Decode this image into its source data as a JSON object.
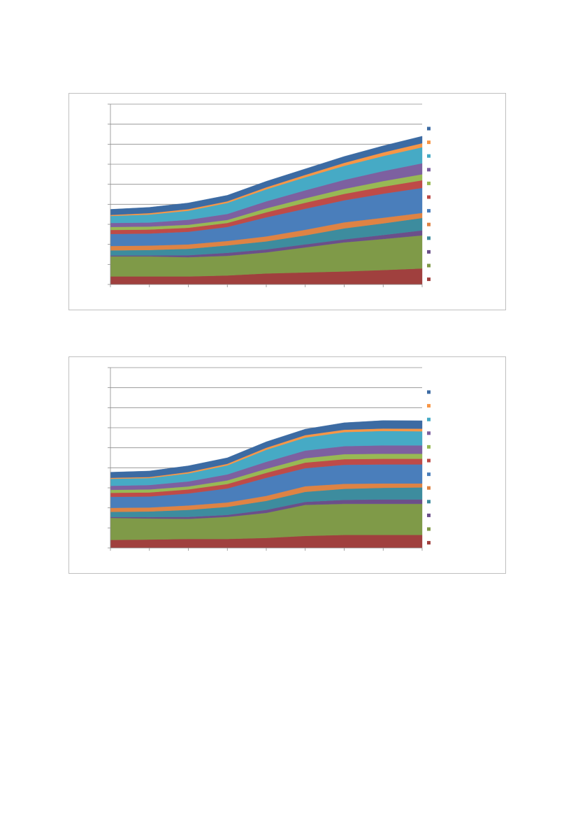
{
  "chart_data": [
    {
      "type": "area",
      "stacked": true,
      "x": [
        0,
        1,
        2,
        3,
        4,
        5,
        6,
        7,
        8
      ],
      "ylim": [
        0,
        9
      ],
      "grid": true,
      "legend_position": "right",
      "series": [
        {
          "color": "#A0403E",
          "values": [
            0.4,
            0.4,
            0.4,
            0.45,
            0.55,
            0.6,
            0.65,
            0.72,
            0.8
          ]
        },
        {
          "color": "#7F9A48",
          "values": [
            1.0,
            1.0,
            0.96,
            0.98,
            1.05,
            1.25,
            1.45,
            1.55,
            1.65
          ]
        },
        {
          "color": "#6B4F8A",
          "values": [
            0.05,
            0.05,
            0.1,
            0.15,
            0.15,
            0.15,
            0.15,
            0.2,
            0.25
          ]
        },
        {
          "color": "#3D8C9E",
          "values": [
            0.25,
            0.27,
            0.32,
            0.37,
            0.4,
            0.45,
            0.55,
            0.58,
            0.62
          ]
        },
        {
          "color": "#DE8344",
          "values": [
            0.22,
            0.22,
            0.22,
            0.22,
            0.25,
            0.28,
            0.3,
            0.28,
            0.25
          ]
        },
        {
          "color": "#4A7EBB",
          "values": [
            0.6,
            0.6,
            0.63,
            0.7,
            0.95,
            1.05,
            1.1,
            1.2,
            1.25
          ]
        },
        {
          "color": "#BE4B48",
          "values": [
            0.2,
            0.2,
            0.2,
            0.2,
            0.25,
            0.3,
            0.32,
            0.35,
            0.38
          ]
        },
        {
          "color": "#98B954",
          "values": [
            0.15,
            0.15,
            0.15,
            0.15,
            0.2,
            0.22,
            0.25,
            0.28,
            0.3
          ]
        },
        {
          "color": "#7D60A0",
          "values": [
            0.2,
            0.2,
            0.25,
            0.3,
            0.35,
            0.4,
            0.45,
            0.5,
            0.55
          ]
        },
        {
          "color": "#46AAC5",
          "values": [
            0.35,
            0.4,
            0.45,
            0.55,
            0.6,
            0.65,
            0.7,
            0.75,
            0.8
          ]
        },
        {
          "color": "#F79646",
          "values": [
            0.05,
            0.07,
            0.08,
            0.08,
            0.1,
            0.12,
            0.15,
            0.18,
            0.2
          ]
        },
        {
          "color": "#3C6BA3",
          "values": [
            0.28,
            0.29,
            0.31,
            0.3,
            0.3,
            0.3,
            0.32,
            0.33,
            0.35
          ]
        }
      ]
    },
    {
      "type": "area",
      "stacked": true,
      "x": [
        0,
        1,
        2,
        3,
        4,
        5,
        6,
        7,
        8
      ],
      "ylim": [
        0,
        9
      ],
      "grid": true,
      "legend_position": "right",
      "series": [
        {
          "color": "#A0403E",
          "values": [
            0.4,
            0.42,
            0.45,
            0.45,
            0.5,
            0.6,
            0.65,
            0.65,
            0.65
          ]
        },
        {
          "color": "#7F9A48",
          "values": [
            1.1,
            1.05,
            1.0,
            1.1,
            1.25,
            1.55,
            1.55,
            1.55,
            1.55
          ]
        },
        {
          "color": "#6B4F8A",
          "values": [
            0.05,
            0.07,
            0.1,
            0.1,
            0.15,
            0.15,
            0.2,
            0.22,
            0.22
          ]
        },
        {
          "color": "#3D8C9E",
          "values": [
            0.25,
            0.28,
            0.35,
            0.4,
            0.45,
            0.5,
            0.55,
            0.58,
            0.6
          ]
        },
        {
          "color": "#DE8344",
          "values": [
            0.2,
            0.2,
            0.22,
            0.22,
            0.25,
            0.28,
            0.25,
            0.22,
            0.2
          ]
        },
        {
          "color": "#4A7EBB",
          "values": [
            0.55,
            0.55,
            0.6,
            0.7,
            0.9,
            0.9,
            0.95,
            0.95,
            0.95
          ]
        },
        {
          "color": "#BE4B48",
          "values": [
            0.2,
            0.2,
            0.2,
            0.22,
            0.25,
            0.28,
            0.28,
            0.28,
            0.28
          ]
        },
        {
          "color": "#98B954",
          "values": [
            0.15,
            0.15,
            0.15,
            0.18,
            0.2,
            0.22,
            0.25,
            0.25,
            0.25
          ]
        },
        {
          "color": "#7D60A0",
          "values": [
            0.2,
            0.22,
            0.25,
            0.3,
            0.35,
            0.38,
            0.4,
            0.42,
            0.42
          ]
        },
        {
          "color": "#46AAC5",
          "values": [
            0.35,
            0.35,
            0.4,
            0.45,
            0.6,
            0.65,
            0.7,
            0.72,
            0.7
          ]
        },
        {
          "color": "#F79646",
          "values": [
            0.05,
            0.05,
            0.07,
            0.08,
            0.1,
            0.12,
            0.12,
            0.12,
            0.13
          ]
        },
        {
          "color": "#3C6BA3",
          "values": [
            0.28,
            0.3,
            0.31,
            0.3,
            0.3,
            0.3,
            0.35,
            0.4,
            0.4
          ]
        }
      ]
    }
  ]
}
